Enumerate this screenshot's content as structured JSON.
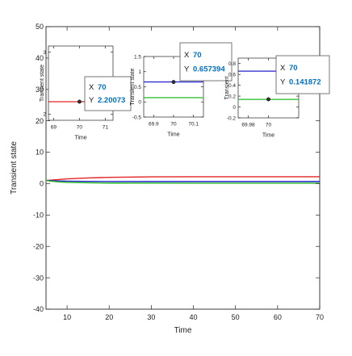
{
  "chart_data": [
    {
      "type": "line",
      "role": "main",
      "xlabel": "Time",
      "ylabel": "Transient state",
      "xlim": [
        5,
        70
      ],
      "ylim": [
        -40,
        50
      ],
      "xticks": [
        10,
        20,
        30,
        40,
        50,
        60,
        70
      ],
      "yticks": [
        -40,
        -30,
        -20,
        -10,
        0,
        10,
        20,
        30,
        40,
        50
      ],
      "grid": false,
      "series": [
        {
          "color": "#e32424",
          "x": [
            5,
            6,
            8,
            10,
            15,
            20,
            30,
            40,
            50,
            60,
            70
          ],
          "y": [
            1.0,
            1.1,
            1.3,
            1.5,
            1.8,
            2.0,
            2.15,
            2.2,
            2.2,
            2.2,
            2.2
          ]
        },
        {
          "color": "#2222cc",
          "x": [
            5,
            6,
            8,
            10,
            15,
            20,
            30,
            40,
            50,
            60,
            70
          ],
          "y": [
            1.0,
            0.95,
            0.85,
            0.78,
            0.7,
            0.68,
            0.66,
            0.66,
            0.66,
            0.66,
            0.66
          ]
        },
        {
          "color": "#22bb22",
          "x": [
            5,
            6,
            8,
            10,
            15,
            20,
            30,
            40,
            50,
            60,
            70
          ],
          "y": [
            1.0,
            0.8,
            0.55,
            0.4,
            0.25,
            0.18,
            0.15,
            0.14,
            0.14,
            0.14,
            0.14
          ]
        }
      ]
    },
    {
      "type": "line",
      "role": "inset-1",
      "xlabel": "Time",
      "ylabel": "Transient state",
      "xlim": [
        68.8,
        71.3
      ],
      "ylim": [
        1.9,
        3.1
      ],
      "xticks": [
        69,
        70,
        71
      ],
      "yticks": [
        2,
        3
      ],
      "series": [
        {
          "color": "#e32424",
          "x": [
            68.8,
            71.3
          ],
          "y": [
            2.2,
            2.2
          ]
        }
      ],
      "datatip": {
        "x": 70,
        "y": 2.20073,
        "x_label": "X",
        "y_label": "Y",
        "x_text": "70",
        "y_text": "2.20073"
      }
    },
    {
      "type": "line",
      "role": "inset-2",
      "xlabel": "Time",
      "ylabel": "Transient state",
      "xlim": [
        69.85,
        70.15
      ],
      "ylim": [
        -0.5,
        1.5
      ],
      "xticks": [
        69.9,
        70,
        70.1
      ],
      "xtick_labels": [
        "69.9",
        "70",
        "70.1"
      ],
      "yticks": [
        -0.5,
        0,
        0.5,
        1,
        1.5
      ],
      "ytick_labels": [
        "-0.5",
        "0",
        "0.5",
        "1",
        "1.5"
      ],
      "series": [
        {
          "color": "#2222cc",
          "x": [
            69.85,
            70.15
          ],
          "y": [
            0.66,
            0.66
          ]
        },
        {
          "color": "#22bb22",
          "x": [
            69.85,
            70.15
          ],
          "y": [
            0.14,
            0.14
          ]
        }
      ],
      "datatip": {
        "x": 70,
        "y": 0.657394,
        "x_label": "X",
        "y_label": "Y",
        "x_text": "70",
        "y_text": "0.657394"
      }
    },
    {
      "type": "line",
      "role": "inset-3",
      "xlabel": "Time",
      "ylabel": "Transient",
      "xlim": [
        69.97,
        70.03
      ],
      "ylim": [
        -0.2,
        0.9
      ],
      "xticks": [
        69.98,
        70
      ],
      "xtick_labels": [
        "69.98",
        "70"
      ],
      "yticks": [
        -0.2,
        0,
        0.2,
        0.4,
        0.6,
        0.8
      ],
      "ytick_labels": [
        "-0.2",
        "0",
        "0.2",
        "0.4",
        "0.6",
        "0.8"
      ],
      "series": [
        {
          "color": "#2222cc",
          "x": [
            69.97,
            70.03
          ],
          "y": [
            0.66,
            0.66
          ]
        },
        {
          "color": "#22bb22",
          "x": [
            69.97,
            70.03
          ],
          "y": [
            0.14,
            0.14
          ]
        }
      ],
      "datatip": {
        "x": 70,
        "y": 0.141872,
        "x_label": "X",
        "y_label": "Y",
        "x_text": "70",
        "y_text": "0.141872"
      }
    }
  ]
}
